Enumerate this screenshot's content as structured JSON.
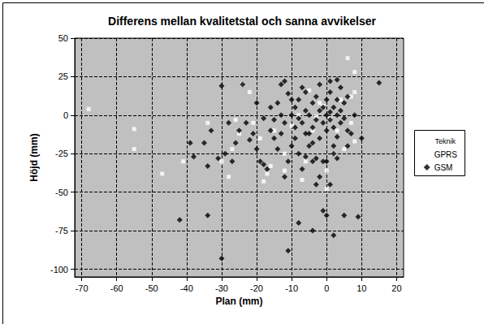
{
  "chart_data": {
    "type": "scatter",
    "title": "Differens mellan kvalitetstal och sanna avvikelser",
    "x_label": "Plan (mm)",
    "y_label": "Höjd (mm)",
    "legend_title": "Teknik",
    "legend": "right",
    "grid": true,
    "xlim": [
      -72,
      22
    ],
    "xticks": [
      -70,
      -60,
      -50,
      -40,
      -30,
      -20,
      -10,
      0,
      10,
      20
    ],
    "ylim": [
      -105,
      50
    ],
    "yticks": [
      -100,
      -75,
      -50,
      -25,
      0,
      25,
      50
    ],
    "series": [
      {
        "name": "GPRS",
        "color": "#ffffff",
        "marker": "square",
        "x": [
          -68,
          -55,
          -55,
          -47,
          -41,
          -34,
          -30,
          -26,
          -25,
          -24,
          -22,
          -21,
          -19,
          -18,
          -17,
          -16,
          -15,
          -12,
          -10,
          -7,
          -6,
          -4,
          -3,
          -2,
          0,
          0,
          2,
          5,
          6,
          7,
          8,
          8,
          8,
          7,
          4,
          1,
          -1,
          -8,
          -12,
          -27,
          -28,
          -5,
          3
        ],
        "values": [
          4,
          -9,
          -22,
          -38,
          -30,
          -5,
          -30,
          -3,
          -12,
          20,
          15,
          -5,
          -15,
          -43,
          -38,
          -33,
          -10,
          -25,
          -7,
          -42,
          -30,
          -10,
          -1,
          8,
          -36,
          -48,
          -25,
          -22,
          37,
          12,
          28,
          -17,
          15,
          -5,
          10,
          -2,
          6,
          0,
          -36,
          -22,
          -40,
          16,
          -10
        ]
      },
      {
        "name": "GSM",
        "color": "#000000",
        "marker": "diamond",
        "x": [
          -42,
          -34,
          -30,
          -11,
          -8,
          -4,
          2,
          5,
          9,
          15,
          -30,
          -24,
          -13,
          -12,
          3,
          -39,
          -38,
          -35,
          -34,
          -31,
          -27,
          -26,
          -25,
          -23,
          -21,
          -20,
          -19,
          -18,
          -17,
          -16,
          -15,
          -14,
          -13,
          -12,
          -11,
          -10,
          -10,
          -9,
          -9,
          -8,
          -8,
          -7,
          -7,
          -6,
          -6,
          -5,
          -5,
          -4,
          -4,
          -3,
          -3,
          -3,
          -2,
          -2,
          -1,
          -1,
          0,
          0,
          0,
          1,
          1,
          1,
          2,
          2,
          2,
          3,
          3,
          3,
          4,
          4,
          5,
          5,
          6,
          6,
          7,
          8,
          10,
          -1,
          0,
          1,
          -2,
          -4,
          -6,
          -20,
          -22,
          -28,
          -29,
          -33,
          -18,
          -16,
          -14,
          -10,
          -8,
          -7,
          -5,
          -2,
          1,
          4,
          6,
          -1,
          -3,
          -12,
          -15,
          -9,
          -6,
          -4,
          2,
          0,
          3,
          -11,
          -13
        ],
        "values": [
          -68,
          -65,
          -93,
          -88,
          -70,
          -75,
          -78,
          -65,
          -66,
          21,
          19,
          20,
          20,
          22,
          23,
          -18,
          -27,
          -18,
          -33,
          -28,
          -30,
          -18,
          -10,
          -5,
          -12,
          -22,
          -30,
          -32,
          -35,
          -10,
          -3,
          -22,
          -12,
          -40,
          -30,
          0,
          -20,
          5,
          -15,
          10,
          -25,
          -5,
          -35,
          15,
          -12,
          0,
          -20,
          8,
          -8,
          -3,
          12,
          -28,
          3,
          -15,
          5,
          -5,
          0,
          10,
          -10,
          2,
          -3,
          15,
          5,
          -8,
          -20,
          0,
          10,
          -14,
          3,
          -5,
          8,
          -2,
          -10,
          12,
          -12,
          0,
          -15,
          -62,
          -65,
          -45,
          -40,
          -30,
          -27,
          8,
          -16,
          -5,
          -25,
          -10,
          -2,
          5,
          8,
          10,
          -2,
          18,
          -12,
          20,
          22,
          18,
          -20,
          -30,
          -45,
          -5,
          -15,
          -8,
          3,
          -18,
          -25,
          -30,
          -28,
          14,
          0
        ]
      }
    ]
  }
}
